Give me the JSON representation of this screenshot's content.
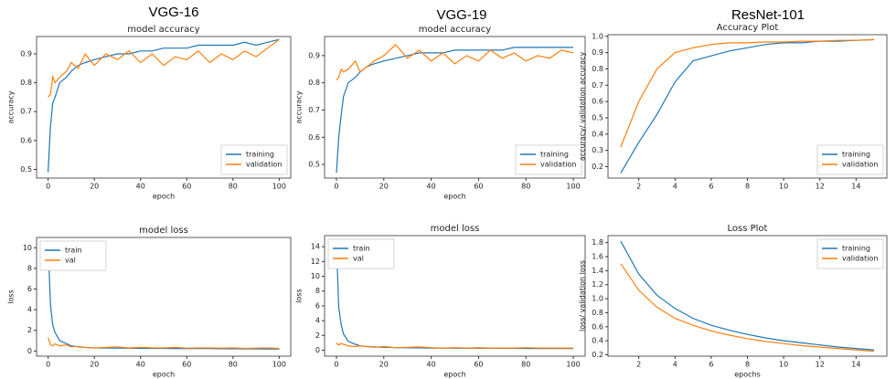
{
  "headings": [
    "VGG-16",
    "VGG-19",
    "ResNet-101"
  ],
  "chart_data": [
    {
      "type": "line",
      "title": "model accuracy",
      "xlabel": "epoch",
      "ylabel": "accuracy",
      "legend": "lower right",
      "x": [
        0,
        1,
        2,
        3,
        5,
        8,
        10,
        13,
        16,
        20,
        25,
        30,
        35,
        40,
        45,
        50,
        55,
        60,
        65,
        70,
        75,
        80,
        85,
        90,
        95,
        100
      ],
      "series": [
        {
          "name": "training",
          "color": "#1f77b4",
          "values": [
            0.49,
            0.65,
            0.73,
            0.75,
            0.8,
            0.82,
            0.84,
            0.86,
            0.87,
            0.88,
            0.89,
            0.9,
            0.9,
            0.91,
            0.91,
            0.92,
            0.92,
            0.92,
            0.93,
            0.93,
            0.93,
            0.93,
            0.94,
            0.93,
            0.94,
            0.95
          ]
        },
        {
          "name": "validation",
          "color": "#ff7f0e",
          "values": [
            0.75,
            0.76,
            0.82,
            0.8,
            0.82,
            0.84,
            0.87,
            0.85,
            0.9,
            0.86,
            0.9,
            0.88,
            0.91,
            0.87,
            0.9,
            0.86,
            0.89,
            0.88,
            0.91,
            0.87,
            0.9,
            0.88,
            0.91,
            0.89,
            0.92,
            0.95
          ]
        }
      ],
      "xlim": [
        -5,
        105
      ],
      "xticks": [
        0,
        20,
        40,
        60,
        80,
        100
      ],
      "ylim": [
        0.47,
        0.96
      ],
      "yticks": [
        0.5,
        0.6,
        0.7,
        0.8,
        0.9
      ]
    },
    {
      "type": "line",
      "title": "model accuracy",
      "xlabel": "epoch",
      "ylabel": "accuracy",
      "legend": "lower right",
      "x": [
        0,
        1,
        2,
        3,
        5,
        8,
        10,
        13,
        16,
        20,
        25,
        30,
        35,
        40,
        45,
        50,
        55,
        60,
        65,
        70,
        75,
        80,
        85,
        90,
        95,
        100
      ],
      "series": [
        {
          "name": "training",
          "color": "#1f77b4",
          "values": [
            0.47,
            0.6,
            0.68,
            0.75,
            0.8,
            0.82,
            0.84,
            0.86,
            0.87,
            0.88,
            0.89,
            0.9,
            0.91,
            0.91,
            0.91,
            0.92,
            0.92,
            0.92,
            0.92,
            0.92,
            0.93,
            0.93,
            0.93,
            0.93,
            0.93,
            0.93
          ]
        },
        {
          "name": "validation",
          "color": "#ff7f0e",
          "values": [
            0.81,
            0.82,
            0.85,
            0.84,
            0.85,
            0.88,
            0.84,
            0.86,
            0.88,
            0.9,
            0.94,
            0.89,
            0.92,
            0.88,
            0.91,
            0.87,
            0.9,
            0.88,
            0.92,
            0.89,
            0.91,
            0.88,
            0.9,
            0.89,
            0.92,
            0.91
          ]
        }
      ],
      "xlim": [
        -5,
        105
      ],
      "xticks": [
        0,
        20,
        40,
        60,
        80,
        100
      ],
      "ylim": [
        0.45,
        0.97
      ],
      "yticks": [
        0.5,
        0.6,
        0.7,
        0.8,
        0.9
      ]
    },
    {
      "type": "line",
      "title": "Accuracy Plot",
      "ylabel": "accuracy/ validation accuracy",
      "legend": "lower right",
      "x": [
        1,
        2,
        3,
        4,
        5,
        6,
        7,
        8,
        9,
        10,
        11,
        12,
        13,
        14,
        15
      ],
      "series": [
        {
          "name": "training",
          "color": "#1f77b4",
          "values": [
            0.16,
            0.35,
            0.52,
            0.72,
            0.85,
            0.88,
            0.91,
            0.93,
            0.95,
            0.96,
            0.96,
            0.97,
            0.97,
            0.975,
            0.98
          ]
        },
        {
          "name": "validation",
          "color": "#ff7f0e",
          "values": [
            0.32,
            0.6,
            0.8,
            0.9,
            0.93,
            0.95,
            0.96,
            0.96,
            0.965,
            0.965,
            0.97,
            0.97,
            0.975,
            0.975,
            0.98
          ]
        }
      ],
      "xlim": [
        0.3,
        15.7
      ],
      "xticks": [
        2,
        4,
        6,
        8,
        10,
        12,
        14
      ],
      "ylim": [
        0.13,
        1.01
      ],
      "yticks": [
        0.2,
        0.3,
        0.4,
        0.5,
        0.6,
        0.7,
        0.8,
        0.9,
        {
          "value": 1,
          "label": "1.0"
        }
      ]
    },
    {
      "type": "line",
      "title": "model loss",
      "xlabel": "epoch",
      "ylabel": "loss",
      "legend": "upper left",
      "x": [
        0,
        1,
        2,
        3,
        5,
        8,
        10,
        13,
        16,
        20,
        25,
        30,
        35,
        40,
        45,
        50,
        55,
        60,
        65,
        70,
        75,
        80,
        85,
        90,
        95,
        100
      ],
      "series": [
        {
          "name": "train",
          "color": "#1f77b4",
          "values": [
            10.5,
            4.5,
            2.5,
            1.8,
            1,
            0.7,
            0.5,
            0.4,
            0.35,
            0.3,
            0.3,
            0.28,
            0.27,
            0.26,
            0.25,
            0.25,
            0.24,
            0.24,
            0.23,
            0.23,
            0.22,
            0.22,
            0.21,
            0.21,
            0.2,
            0.2
          ]
        },
        {
          "name": "val",
          "color": "#ff7f0e",
          "values": [
            1.3,
            0.6,
            0.5,
            0.7,
            0.5,
            0.6,
            0.4,
            0.45,
            0.35,
            0.3,
            0.35,
            0.4,
            0.3,
            0.35,
            0.3,
            0.3,
            0.35,
            0.28,
            0.3,
            0.3,
            0.28,
            0.3,
            0.25,
            0.28,
            0.3,
            0.25
          ]
        }
      ],
      "xlim": [
        -5,
        105
      ],
      "xticks": [
        0,
        20,
        40,
        60,
        80,
        100
      ],
      "ylim": [
        -0.5,
        11
      ],
      "yticks": [
        0,
        2,
        4,
        6,
        8,
        10
      ]
    },
    {
      "type": "line",
      "title": "model loss",
      "xlabel": "epoch",
      "ylabel": "loss",
      "legend": "upper left",
      "x": [
        0,
        1,
        2,
        3,
        5,
        8,
        10,
        13,
        16,
        20,
        25,
        30,
        35,
        40,
        45,
        50,
        55,
        60,
        65,
        70,
        75,
        80,
        85,
        90,
        95,
        100
      ],
      "series": [
        {
          "name": "train",
          "color": "#1f77b4",
          "values": [
            14.5,
            5.8,
            3.5,
            2.2,
            1.2,
            0.8,
            0.6,
            0.5,
            0.45,
            0.4,
            0.35,
            0.33,
            0.32,
            0.3,
            0.3,
            0.28,
            0.28,
            0.27,
            0.27,
            0.26,
            0.25,
            0.25,
            0.24,
            0.24,
            0.23,
            0.23
          ]
        },
        {
          "name": "val",
          "color": "#ff7f0e",
          "values": [
            1,
            0.7,
            0.9,
            0.8,
            0.6,
            0.5,
            0.6,
            0.5,
            0.4,
            0.5,
            0.35,
            0.4,
            0.45,
            0.35,
            0.3,
            0.35,
            0.3,
            0.35,
            0.3,
            0.3,
            0.3,
            0.35,
            0.3,
            0.3,
            0.3,
            0.3
          ]
        }
      ],
      "xlim": [
        -5,
        105
      ],
      "xticks": [
        0,
        20,
        40,
        60,
        80,
        100
      ],
      "ylim": [
        -0.8,
        15.5
      ],
      "yticks": [
        0,
        2,
        4,
        6,
        8,
        10,
        12,
        14
      ]
    },
    {
      "type": "line",
      "title": "Loss Plot",
      "xlabel": "epochs",
      "ylabel": "loss/ validation loss",
      "legend": "upper right",
      "x": [
        1,
        2,
        3,
        4,
        5,
        6,
        7,
        8,
        9,
        10,
        11,
        12,
        13,
        14,
        15
      ],
      "series": [
        {
          "name": "training",
          "color": "#1f77b4",
          "values": [
            1.82,
            1.35,
            1.05,
            0.86,
            0.72,
            0.62,
            0.55,
            0.49,
            0.44,
            0.4,
            0.37,
            0.34,
            0.31,
            0.29,
            0.27
          ]
        },
        {
          "name": "validation",
          "color": "#ff7f0e",
          "values": [
            1.5,
            1.12,
            0.88,
            0.72,
            0.62,
            0.54,
            0.48,
            0.43,
            0.39,
            0.36,
            0.33,
            0.31,
            0.29,
            0.27,
            0.25
          ]
        }
      ],
      "xlim": [
        0.3,
        15.7
      ],
      "xticks": [
        2,
        4,
        6,
        8,
        10,
        12,
        14
      ],
      "ylim": [
        0.18,
        1.9
      ],
      "yticks": [
        0.2,
        0.4,
        0.6,
        0.8,
        {
          "value": 1,
          "label": "1.0"
        },
        1.2,
        1.4,
        1.6,
        1.8
      ]
    }
  ]
}
